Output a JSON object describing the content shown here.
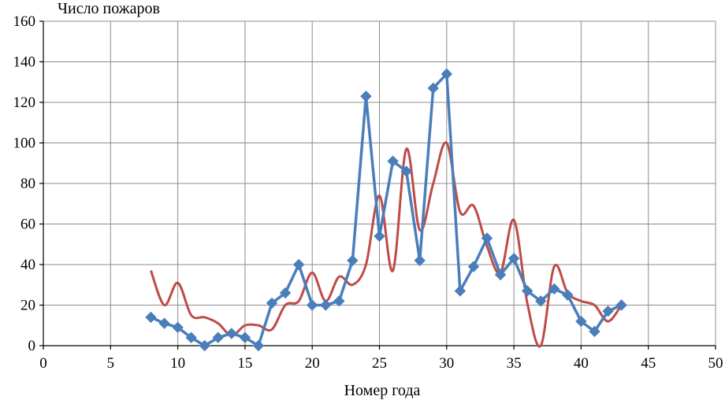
{
  "chart_data": {
    "type": "line",
    "title": "",
    "ylabel": "Число пожаров",
    "xlabel": "Номер года",
    "xlim": [
      0,
      50
    ],
    "ylim": [
      0,
      160
    ],
    "xticks": [
      0,
      5,
      10,
      15,
      20,
      25,
      30,
      35,
      40,
      45,
      50
    ],
    "yticks": [
      0,
      20,
      40,
      60,
      80,
      100,
      120,
      140,
      160
    ],
    "grid": true,
    "legend": "none",
    "series": [
      {
        "color": "#4a7ebb",
        "marker": "diamond",
        "smooth": false,
        "x": [
          8,
          9,
          10,
          11,
          12,
          13,
          14,
          15,
          16,
          17,
          18,
          19,
          20,
          21,
          22,
          23,
          24,
          25,
          26,
          27,
          28,
          29,
          30,
          31,
          32,
          33,
          34,
          35,
          36,
          37,
          38,
          39,
          40,
          41,
          42,
          43
        ],
        "y": [
          14,
          11,
          9,
          4,
          0,
          4,
          6,
          4,
          0,
          21,
          26,
          40,
          20,
          20,
          22,
          42,
          123,
          54,
          91,
          86,
          42,
          127,
          134,
          27,
          39,
          53,
          35,
          43,
          27,
          22,
          28,
          25,
          12,
          7,
          17,
          20
        ]
      },
      {
        "color": "#be4b48",
        "marker": "none",
        "smooth": true,
        "x": [
          8,
          9,
          10,
          11,
          12,
          13,
          14,
          15,
          16,
          17,
          18,
          19,
          20,
          21,
          22,
          23,
          24,
          25,
          26,
          27,
          28,
          29,
          30,
          31,
          32,
          33,
          34,
          35,
          36,
          37,
          38,
          39,
          40,
          41,
          42,
          43
        ],
        "y": [
          37,
          20,
          31,
          15,
          14,
          11,
          5,
          10,
          10,
          8,
          20,
          22,
          36,
          22,
          34,
          30,
          40,
          74,
          37,
          97,
          57,
          80,
          100,
          66,
          69,
          49,
          36,
          62,
          21,
          0,
          39,
          26,
          22,
          20,
          12,
          20
        ]
      }
    ]
  }
}
